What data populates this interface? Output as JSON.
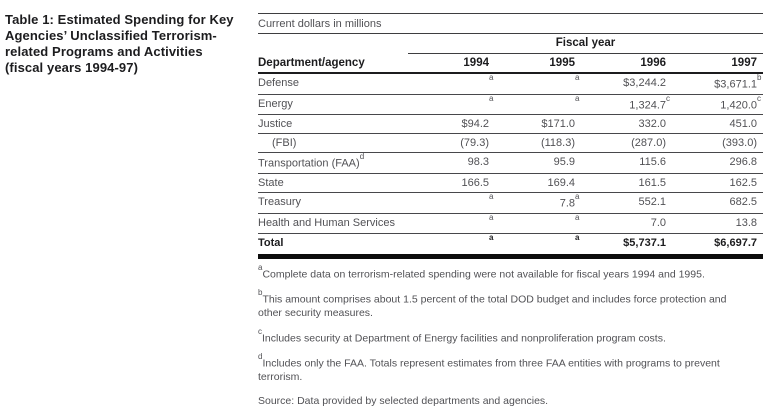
{
  "page": {
    "title": "Table 1: Estimated Spending for Key Agencies’ Unclassified Terrorism-related Programs and Activities (fiscal years 1994-97)"
  },
  "table": {
    "units_caption": "Current dollars in millions",
    "column_group": "Fiscal year",
    "row_header": "Department/agency",
    "years": [
      "1994",
      "1995",
      "1996",
      "1997"
    ],
    "rows": [
      {
        "label": "Defense",
        "label_sup": "",
        "cells": [
          {
            "v": "",
            "sup": "a"
          },
          {
            "v": "",
            "sup": "a"
          },
          {
            "v": "$3,244.2",
            "sup": ""
          },
          {
            "v": "$3,671.1",
            "sup": "b"
          }
        ]
      },
      {
        "label": "Energy",
        "label_sup": "",
        "cells": [
          {
            "v": "",
            "sup": "a"
          },
          {
            "v": "",
            "sup": "a"
          },
          {
            "v": "1,324.7",
            "sup": "c"
          },
          {
            "v": "1,420.0",
            "sup": "c"
          }
        ]
      },
      {
        "label": "Justice",
        "label_sup": "",
        "cells": [
          {
            "v": "$94.2",
            "sup": ""
          },
          {
            "v": "$171.0",
            "sup": ""
          },
          {
            "v": "332.0",
            "sup": ""
          },
          {
            "v": "451.0",
            "sup": ""
          }
        ]
      },
      {
        "label": "(FBI)",
        "label_sup": "",
        "cells": [
          {
            "v": "(79.3)",
            "sup": ""
          },
          {
            "v": "(118.3)",
            "sup": ""
          },
          {
            "v": "(287.0)",
            "sup": ""
          },
          {
            "v": "(393.0)",
            "sup": ""
          }
        ]
      },
      {
        "label": "Transportation (FAA)",
        "label_sup": "d",
        "cells": [
          {
            "v": "98.3",
            "sup": ""
          },
          {
            "v": "95.9",
            "sup": ""
          },
          {
            "v": "115.6",
            "sup": ""
          },
          {
            "v": "296.8",
            "sup": ""
          }
        ]
      },
      {
        "label": "State",
        "label_sup": "",
        "cells": [
          {
            "v": "166.5",
            "sup": ""
          },
          {
            "v": "169.4",
            "sup": ""
          },
          {
            "v": "161.5",
            "sup": ""
          },
          {
            "v": "162.5",
            "sup": ""
          }
        ]
      },
      {
        "label": "Treasury",
        "label_sup": "",
        "cells": [
          {
            "v": "",
            "sup": "a"
          },
          {
            "v": "7.8",
            "sup": "a"
          },
          {
            "v": "552.1",
            "sup": ""
          },
          {
            "v": "682.5",
            "sup": ""
          }
        ]
      },
      {
        "label": "Health and Human Services",
        "label_sup": "",
        "cells": [
          {
            "v": "",
            "sup": "a"
          },
          {
            "v": "",
            "sup": "a"
          },
          {
            "v": "7.0",
            "sup": ""
          },
          {
            "v": "13.8",
            "sup": ""
          }
        ]
      }
    ],
    "total_row": {
      "label": "Total",
      "cells": [
        {
          "v": "",
          "sup": "a"
        },
        {
          "v": "",
          "sup": "a"
        },
        {
          "v": "$5,737.1",
          "sup": ""
        },
        {
          "v": "$6,697.7",
          "sup": ""
        }
      ]
    }
  },
  "footnotes": [
    {
      "marker": "a",
      "text": "Complete data on terrorism-related spending were not available for fiscal years 1994 and 1995."
    },
    {
      "marker": "b",
      "text": "This amount comprises about 1.5 percent of the total DOD budget and includes force protection and other security measures."
    },
    {
      "marker": "c",
      "text": "Includes security at Department of Energy facilities and nonproliferation program costs."
    },
    {
      "marker": "d",
      "text": "Includes only the FAA. Totals represent estimates from three FAA entities with programs to prevent terrorism."
    }
  ],
  "source_line": "Source: Data provided by selected departments and agencies."
}
